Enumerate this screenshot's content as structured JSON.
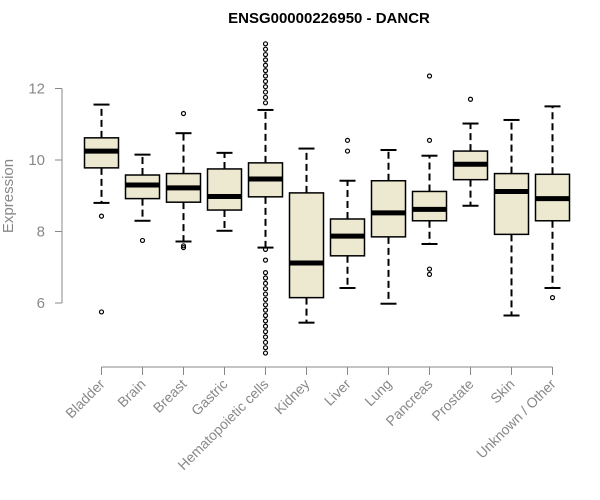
{
  "chart_data": {
    "type": "boxplot",
    "title": "ENSG00000226950 - DANCR",
    "ylabel": "Expression",
    "ylim": [
      4.5,
      13.3
    ],
    "yticks": [
      6,
      8,
      10,
      12
    ],
    "box_fill": "#ede8d0",
    "box_stroke": "#000000",
    "axis_color": "#888888",
    "categories": [
      "Bladder",
      "Brain",
      "Breast",
      "Gastric",
      "Hematopoietic cells",
      "Kidney",
      "Liver",
      "Lung",
      "Pancreas",
      "Prostate",
      "Skin",
      "Unknown / Other"
    ],
    "boxes": [
      {
        "category": "Bladder",
        "whisker_low": 8.8,
        "q1": 9.78,
        "median": 10.25,
        "q3": 10.62,
        "whisker_high": 11.55,
        "outliers": [
          8.43,
          5.75
        ]
      },
      {
        "category": "Brain",
        "whisker_low": 8.3,
        "q1": 8.92,
        "median": 9.3,
        "q3": 9.58,
        "whisker_high": 10.15,
        "outliers": [
          7.75
        ]
      },
      {
        "category": "Breast",
        "whisker_low": 7.72,
        "q1": 8.82,
        "median": 9.22,
        "q3": 9.62,
        "whisker_high": 10.75,
        "outliers": [
          11.3,
          7.6,
          7.55
        ]
      },
      {
        "category": "Gastric",
        "whisker_low": 8.02,
        "q1": 8.6,
        "median": 8.98,
        "q3": 9.75,
        "whisker_high": 10.2,
        "outliers": []
      },
      {
        "category": "Hematopoietic cells",
        "whisker_low": 7.55,
        "q1": 8.97,
        "median": 9.47,
        "q3": 9.92,
        "whisker_high": 11.4,
        "outliers": [
          13.25,
          13.1,
          12.95,
          12.8,
          12.65,
          12.5,
          12.35,
          12.2,
          12.05,
          11.9,
          11.75,
          11.6,
          7.5,
          7.2,
          6.85,
          6.7,
          6.55,
          6.4,
          6.25,
          6.1,
          5.95,
          5.8,
          5.65,
          5.5,
          5.35,
          5.2,
          5.05,
          4.9,
          4.75,
          4.6
        ]
      },
      {
        "category": "Kidney",
        "whisker_low": 5.45,
        "q1": 6.15,
        "median": 7.12,
        "q3": 9.08,
        "whisker_high": 10.32,
        "outliers": []
      },
      {
        "category": "Liver",
        "whisker_low": 6.42,
        "q1": 7.32,
        "median": 7.87,
        "q3": 8.35,
        "whisker_high": 9.42,
        "outliers": [
          10.55,
          10.25
        ]
      },
      {
        "category": "Lung",
        "whisker_low": 5.98,
        "q1": 7.85,
        "median": 8.52,
        "q3": 9.42,
        "whisker_high": 10.28,
        "outliers": []
      },
      {
        "category": "Pancreas",
        "whisker_low": 7.65,
        "q1": 8.3,
        "median": 8.62,
        "q3": 9.12,
        "whisker_high": 10.12,
        "outliers": [
          12.35,
          10.55,
          6.95,
          6.8
        ]
      },
      {
        "category": "Prostate",
        "whisker_low": 8.72,
        "q1": 9.45,
        "median": 9.88,
        "q3": 10.25,
        "whisker_high": 11.02,
        "outliers": [
          11.7
        ]
      },
      {
        "category": "Skin",
        "whisker_low": 5.65,
        "q1": 7.92,
        "median": 9.12,
        "q3": 9.62,
        "whisker_high": 11.12,
        "outliers": []
      },
      {
        "category": "Unknown / Other",
        "whisker_low": 6.42,
        "q1": 8.3,
        "median": 8.92,
        "q3": 9.6,
        "whisker_high": 11.5,
        "outliers": [
          6.15
        ]
      }
    ]
  }
}
